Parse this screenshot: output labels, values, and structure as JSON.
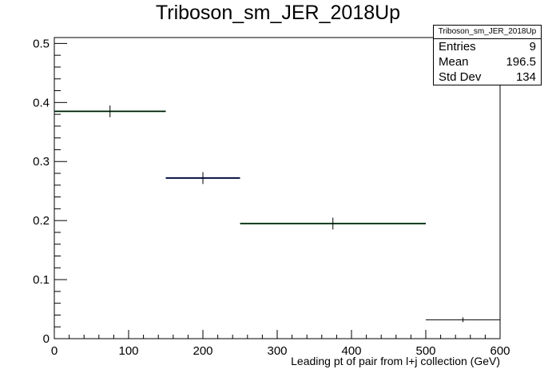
{
  "chart_data": {
    "type": "histogram",
    "title": "Triboson_sm_JER_2018Up",
    "xlabel": "Leading pt of pair from l+j collection (GeV)",
    "ylabel": "",
    "xlim": [
      0,
      600
    ],
    "ylim": [
      0,
      0.51
    ],
    "x_ticks": [
      "0",
      "100",
      "200",
      "300",
      "400",
      "500",
      "600"
    ],
    "y_ticks": [
      "0",
      "0.1",
      "0.2",
      "0.3",
      "0.4",
      "0.5"
    ],
    "bins": [
      {
        "low": 0,
        "high": 150,
        "value": 0.385,
        "error": 0.01,
        "color": "#1f7a3a"
      },
      {
        "low": 150,
        "high": 250,
        "value": 0.272,
        "error": 0.01,
        "color": "#0a1f8c"
      },
      {
        "low": 250,
        "high": 500,
        "value": 0.195,
        "error": 0.01,
        "color": "#1f7a3a"
      },
      {
        "low": 500,
        "high": 600,
        "value": 0.032,
        "error": 0.004,
        "color": "#000000"
      }
    ],
    "stats": {
      "title": "Triboson_sm_JER_2018Up",
      "rows": [
        {
          "label": "Entries",
          "value": "9"
        },
        {
          "label": "Mean",
          "value": "196.5"
        },
        {
          "label": "Std Dev",
          "value": "134"
        }
      ]
    }
  }
}
